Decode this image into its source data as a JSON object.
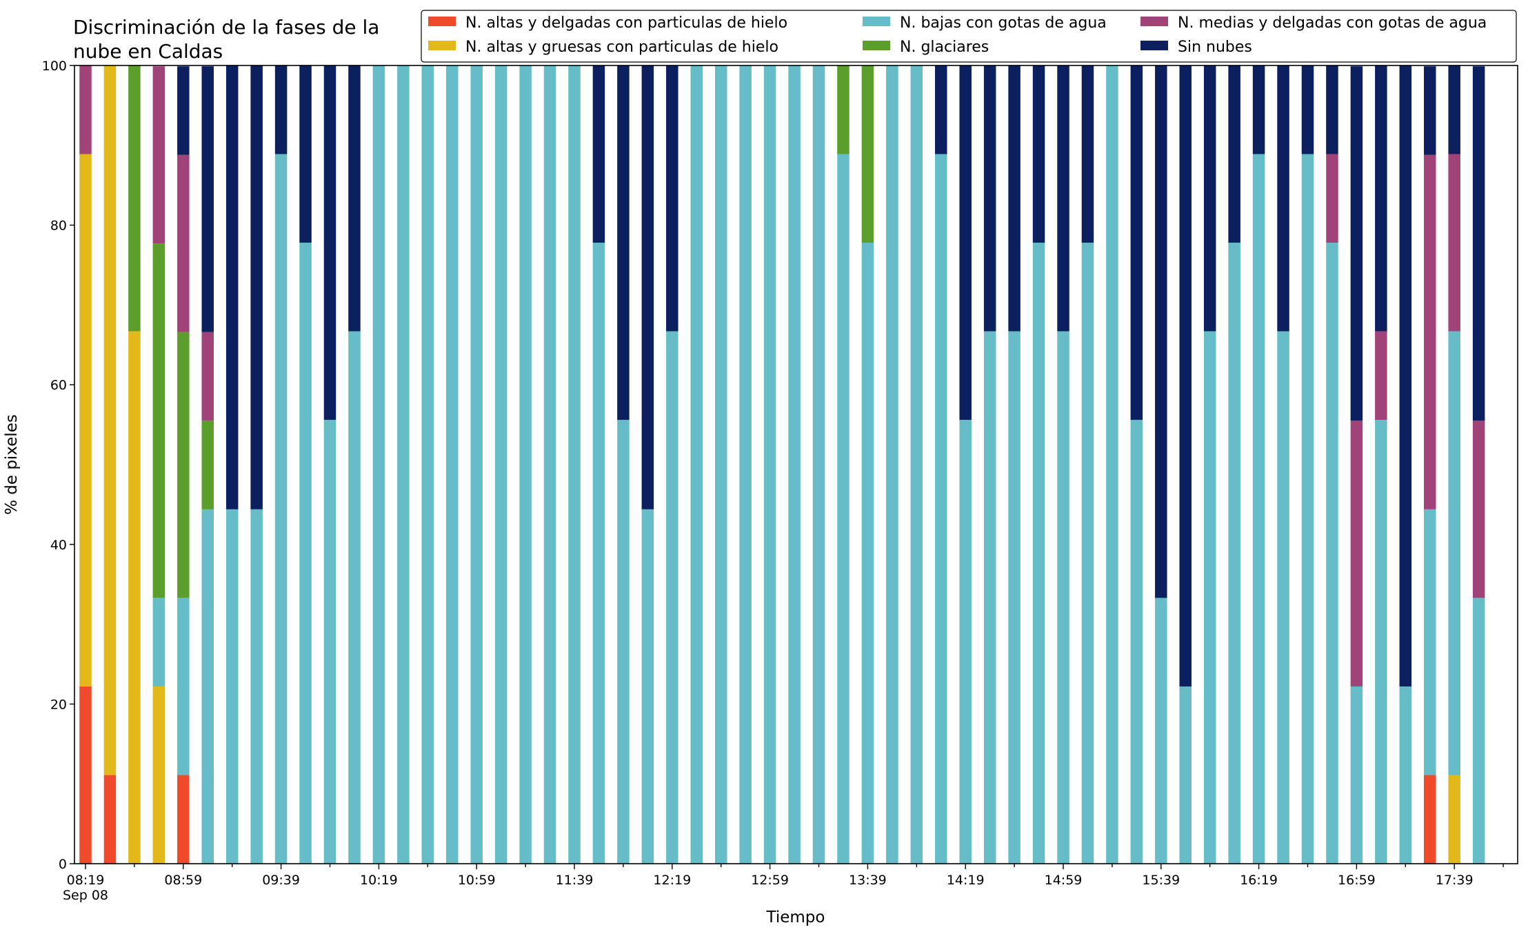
{
  "chart_data": {
    "type": "bar",
    "stacked": true,
    "title_lines": [
      "Discriminación de la fases de la",
      "nube en Caldas"
    ],
    "xlabel": "Tiempo",
    "ylabel": "% de pixeles",
    "ylim": [
      0,
      100
    ],
    "yticks": [
      "0",
      "20",
      "40",
      "60",
      "80",
      "100"
    ],
    "xtick_labels": [
      "08:19",
      "08:59",
      "09:39",
      "10:19",
      "10:59",
      "11:39",
      "12:19",
      "12:59",
      "13:39",
      "14:19",
      "14:59",
      "15:39",
      "16:19",
      "16:59",
      "17:39"
    ],
    "xtick_sublabel": "Sep 08",
    "grid": false,
    "legend_position": "top-right",
    "interval_minutes": 10,
    "categories": [
      "08:19",
      "08:29",
      "08:39",
      "08:49",
      "08:59",
      "09:09",
      "09:19",
      "09:29",
      "09:39",
      "09:49",
      "09:59",
      "10:09",
      "10:19",
      "10:29",
      "10:39",
      "10:49",
      "10:59",
      "11:09",
      "11:19",
      "11:29",
      "11:39",
      "11:49",
      "11:59",
      "12:09",
      "12:19",
      "12:29",
      "12:39",
      "12:49",
      "12:59",
      "13:09",
      "13:19",
      "13:29",
      "13:39",
      "13:49",
      "13:59",
      "14:09",
      "14:19",
      "14:29",
      "14:39",
      "14:49",
      "14:59",
      "15:09",
      "15:19",
      "15:29",
      "15:39",
      "15:49",
      "15:59",
      "16:09",
      "16:19",
      "16:29",
      "16:39",
      "16:49",
      "16:59",
      "17:09",
      "17:19",
      "17:29",
      "17:39",
      "17:49"
    ],
    "series": [
      {
        "name": "N. altas y delgadas con particulas de hielo",
        "color": "#ee4a2b",
        "values": [
          22.2,
          11.1,
          0,
          0,
          11.1,
          0,
          0,
          0,
          0,
          0,
          0,
          0,
          0,
          0,
          0,
          0,
          0,
          0,
          0,
          0,
          0,
          0,
          0,
          0,
          0,
          0,
          0,
          0,
          0,
          0,
          0,
          0,
          0,
          0,
          0,
          0,
          0,
          0,
          0,
          0,
          0,
          0,
          0,
          0,
          0,
          0,
          0,
          0,
          0,
          0,
          0,
          0,
          0,
          0,
          0,
          11.1,
          0,
          0
        ]
      },
      {
        "name": "N. altas y gruesas con particulas de hielo",
        "color": "#e3b81b",
        "values": [
          66.7,
          88.9,
          66.7,
          22.2,
          0,
          0,
          0,
          0,
          0,
          0,
          0,
          0,
          0,
          0,
          0,
          0,
          0,
          0,
          0,
          0,
          0,
          0,
          0,
          0,
          0,
          0,
          0,
          0,
          0,
          0,
          0,
          0,
          0,
          0,
          0,
          0,
          0,
          0,
          0,
          0,
          0,
          0,
          0,
          0,
          0,
          0,
          0,
          0,
          0,
          0,
          0,
          0,
          0,
          0,
          0,
          0,
          11.1,
          0
        ]
      },
      {
        "name": "N. bajas con gotas de agua",
        "color": "#66bdc8",
        "values": [
          0,
          0,
          0,
          11.1,
          22.2,
          44.4,
          44.4,
          44.4,
          88.9,
          77.8,
          55.6,
          66.7,
          100,
          100,
          100,
          100,
          100,
          100,
          100,
          100,
          100,
          77.8,
          55.6,
          44.4,
          66.7,
          100,
          100,
          100,
          100,
          100,
          100,
          88.9,
          77.8,
          100,
          100,
          88.9,
          55.6,
          66.7,
          66.7,
          77.8,
          66.7,
          77.8,
          100,
          55.6,
          33.3,
          22.2,
          66.7,
          77.8,
          88.9,
          66.7,
          88.9,
          77.8,
          22.2,
          55.6,
          22.2,
          33.3,
          55.6,
          33.3
        ]
      },
      {
        "name": "N. glaciares",
        "color": "#5b9e2c",
        "values": [
          0,
          0,
          33.3,
          44.4,
          33.3,
          11.1,
          0,
          0,
          0,
          0,
          0,
          0,
          0,
          0,
          0,
          0,
          0,
          0,
          0,
          0,
          0,
          0,
          0,
          0,
          0,
          0,
          0,
          0,
          0,
          0,
          0,
          11.1,
          22.2,
          0,
          0,
          0,
          0,
          0,
          0,
          0,
          0,
          0,
          0,
          0,
          0,
          0,
          0,
          0,
          0,
          0,
          0,
          0,
          0,
          0,
          0,
          0,
          0,
          0
        ]
      },
      {
        "name": "N. medias y delgadas con gotas de agua",
        "color": "#9f4379",
        "values": [
          11.1,
          0,
          0,
          22.2,
          22.2,
          11.1,
          0,
          0,
          0,
          0,
          0,
          0,
          0,
          0,
          0,
          0,
          0,
          0,
          0,
          0,
          0,
          0,
          0,
          0,
          0,
          0,
          0,
          0,
          0,
          0,
          0,
          0,
          0,
          0,
          0,
          0,
          0,
          0,
          0,
          0,
          0,
          0,
          0,
          0,
          0,
          0,
          0,
          0,
          0,
          0,
          0,
          11.1,
          33.3,
          11.1,
          0,
          44.4,
          22.2,
          22.2
        ]
      },
      {
        "name": "Sin nubes",
        "color": "#0c1f5e",
        "values": [
          0,
          0,
          0,
          0,
          11.1,
          33.3,
          55.6,
          55.6,
          11.1,
          22.2,
          44.4,
          33.3,
          0,
          0,
          0,
          0,
          0,
          0,
          0,
          0,
          0,
          22.2,
          44.4,
          55.6,
          33.3,
          0,
          0,
          0,
          0,
          0,
          0,
          0,
          0,
          0,
          0,
          11.1,
          44.4,
          33.3,
          33.3,
          22.2,
          33.3,
          22.2,
          0,
          44.4,
          66.7,
          77.8,
          33.3,
          22.2,
          11.1,
          33.3,
          11.1,
          11.1,
          44.4,
          33.3,
          77.8,
          11.1,
          11.1,
          44.4
        ]
      }
    ]
  }
}
